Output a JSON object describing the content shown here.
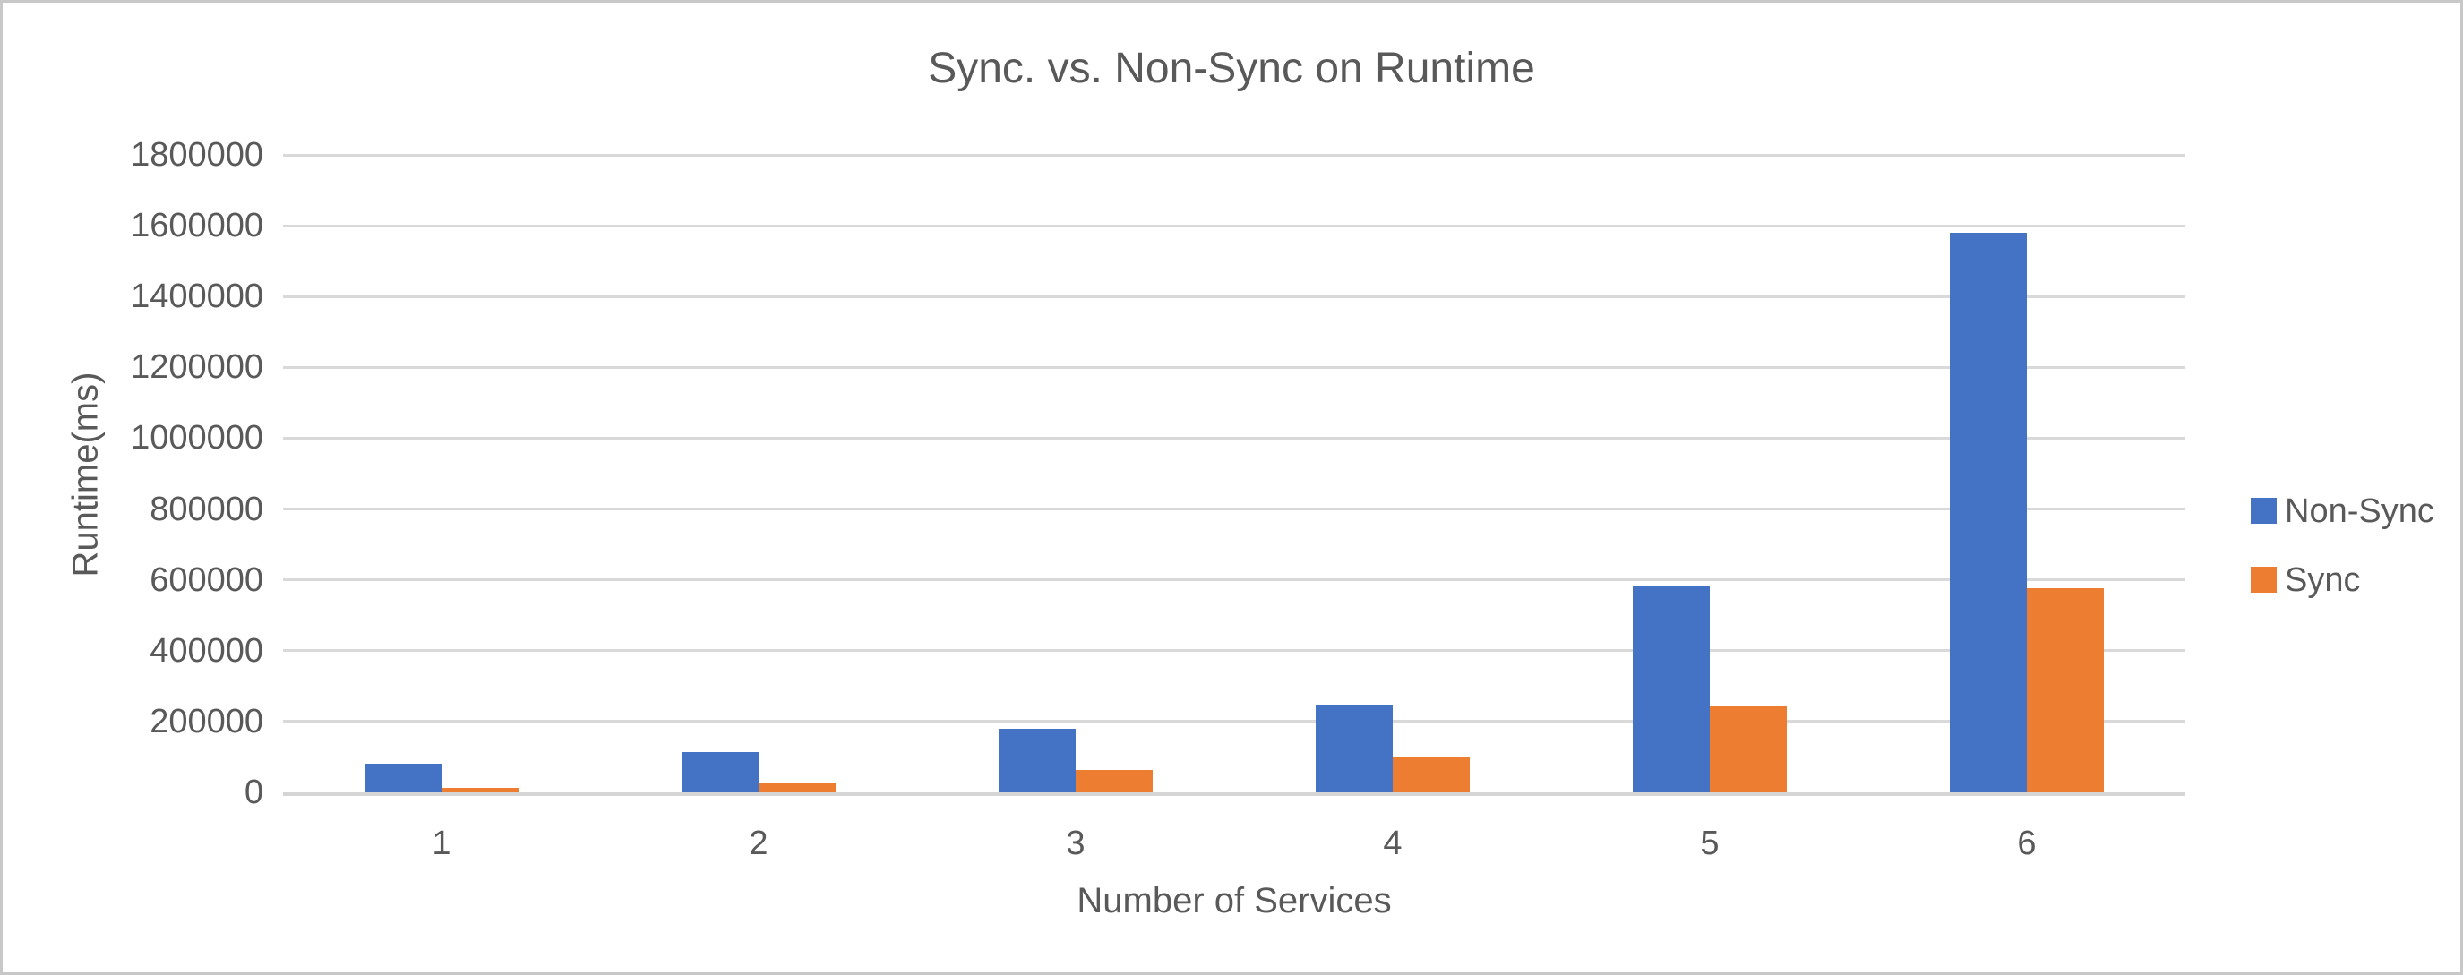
{
  "chart_data": {
    "type": "bar",
    "title": "Sync. vs. Non-Sync on Runtime",
    "xlabel": "Number of Services",
    "ylabel": "Runtime(ms)",
    "categories": [
      "1",
      "2",
      "3",
      "4",
      "5",
      "6"
    ],
    "series": [
      {
        "name": "Non-Sync",
        "color": "#4472C4",
        "values": [
          82000,
          113000,
          180000,
          248000,
          585000,
          1580000
        ]
      },
      {
        "name": "Sync",
        "color": "#ED7D31",
        "values": [
          12000,
          27000,
          64000,
          99000,
          242000,
          577000
        ]
      }
    ],
    "ylim": [
      0,
      1800000
    ],
    "yticks": [
      0,
      200000,
      400000,
      600000,
      800000,
      1000000,
      1200000,
      1400000,
      1600000,
      1800000
    ],
    "ytick_labels": [
      "0",
      "200000",
      "400000",
      "600000",
      "800000",
      "1000000",
      "1200000",
      "1400000",
      "1600000",
      "1800000"
    ],
    "grid": true,
    "legend_position": "right",
    "legend_entries": [
      "Non-Sync",
      "Sync"
    ]
  },
  "colors": {
    "series_non_sync": "#4472C4",
    "series_sync": "#ED7D31",
    "text": "#595959",
    "gridline": "#D9D9D9",
    "axis_line": "#D5D5D5",
    "frame_border": "#C8C8C8",
    "background": "#FFFFFF"
  }
}
